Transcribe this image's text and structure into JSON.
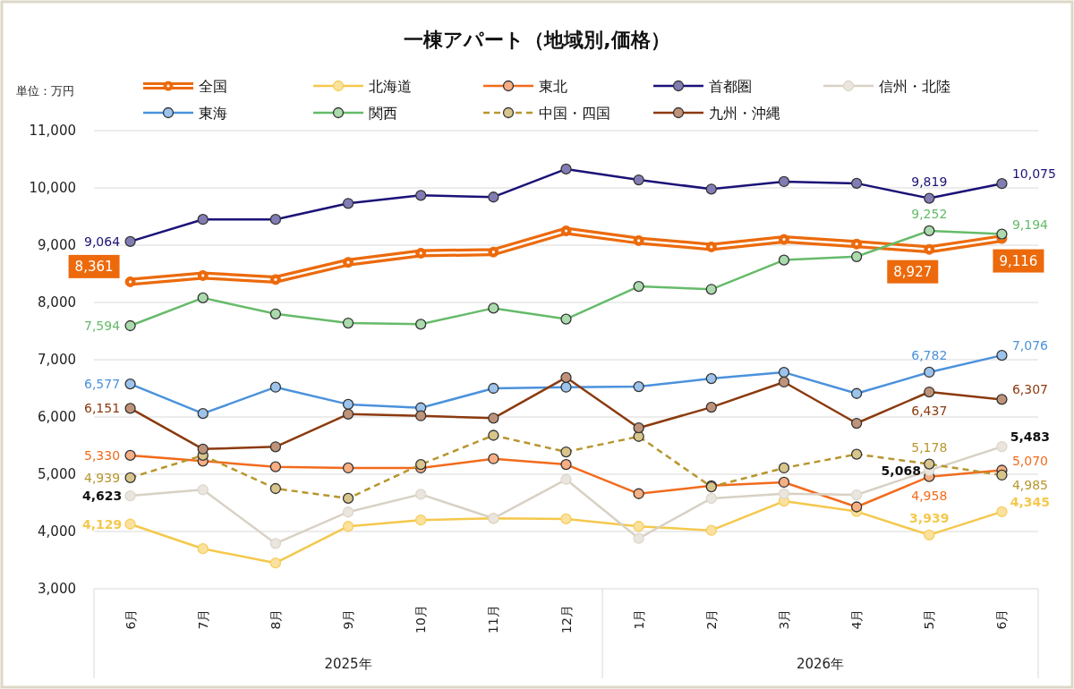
{
  "chart_data": {
    "type": "line",
    "title": "一棟アパート（地域別,価格）",
    "categories": [
      "6月",
      "7月",
      "8月",
      "9月",
      "10月",
      "11月",
      "12月",
      "1月",
      "2月",
      "3月",
      "4月",
      "5月",
      "6月"
    ],
    "annotations": [
      "単位：万円",
      "2025年",
      "2026年"
    ],
    "ylim": [
      3000,
      11000
    ],
    "yticks": [
      {
        "value": 3000,
        "label": "3,000"
      },
      {
        "value": 4000,
        "label": "4,000"
      },
      {
        "value": 5000,
        "label": "5,000"
      },
      {
        "value": 6000,
        "label": "6,000"
      },
      {
        "value": 7000,
        "label": "7,000"
      },
      {
        "value": 8000,
        "label": "8,000"
      },
      {
        "value": 9000,
        "label": "9,000"
      },
      {
        "value": 10000,
        "label": "10,000"
      },
      {
        "value": 11000,
        "label": "11,000"
      }
    ],
    "grid": "y",
    "legend": "top",
    "marker": "circle",
    "line_style": "solid",
    "series": [
      {
        "name": "全国",
        "color": "#ec6a0c",
        "values": [
          8361,
          8470,
          8400,
          8700,
          8860,
          8880,
          9250,
          9080,
          8970,
          9100,
          9020,
          8927,
          9116
        ],
        "value_labels": [
          "8,361",
          null,
          null,
          null,
          null,
          null,
          null,
          null,
          null,
          null,
          null,
          "8,927",
          "9,116"
        ]
      },
      {
        "name": "北海道",
        "color": "#f5c84c",
        "values": [
          4129,
          3700,
          3450,
          4090,
          4200,
          4230,
          4220,
          4090,
          4020,
          4530,
          4350,
          3939,
          4345
        ],
        "value_labels": [
          "4,129",
          null,
          null,
          null,
          null,
          null,
          null,
          null,
          null,
          null,
          null,
          "3,939",
          "4,345"
        ]
      },
      {
        "name": "東北",
        "color": "#f26b1d",
        "values": [
          5330,
          5230,
          5130,
          5110,
          5110,
          5270,
          5170,
          4660,
          4800,
          4860,
          4430,
          4958,
          5070
        ],
        "value_labels": [
          "5,330",
          null,
          null,
          null,
          null,
          null,
          null,
          null,
          null,
          null,
          null,
          "4,958",
          "5,070"
        ]
      },
      {
        "name": "首都圏",
        "color": "#1a1277",
        "values": [
          9064,
          9450,
          9450,
          9730,
          9870,
          9840,
          10330,
          10140,
          9980,
          10110,
          10080,
          9819,
          10075
        ],
        "value_labels": [
          "9,064",
          null,
          null,
          null,
          null,
          null,
          null,
          null,
          null,
          null,
          null,
          "9,819",
          "10,075"
        ]
      },
      {
        "name": "信州・北陸",
        "color": "#d8d1c4",
        "values": [
          4623,
          4730,
          3790,
          4340,
          4650,
          4230,
          4910,
          3880,
          4580,
          4660,
          4640,
          5068,
          5483
        ],
        "value_labels": [
          "4,623",
          null,
          null,
          null,
          null,
          null,
          null,
          null,
          null,
          null,
          null,
          "5,068",
          "5,483"
        ]
      },
      {
        "name": "東海",
        "color": "#4b92dc",
        "values": [
          6577,
          6060,
          6520,
          6220,
          6160,
          6500,
          6520,
          6530,
          6670,
          6780,
          6410,
          6782,
          7076
        ],
        "value_labels": [
          "6,577",
          null,
          null,
          null,
          null,
          null,
          null,
          null,
          null,
          null,
          null,
          "6,782",
          "7,076"
        ]
      },
      {
        "name": "関西",
        "color": "#66bb6a",
        "values": [
          7594,
          8080,
          7800,
          7640,
          7620,
          7900,
          7710,
          8280,
          8230,
          8740,
          8800,
          9252,
          9194
        ],
        "value_labels": [
          "7,594",
          null,
          null,
          null,
          null,
          null,
          null,
          null,
          null,
          null,
          null,
          "9,252",
          "9,194"
        ]
      },
      {
        "name": "中国・四国",
        "color": "#b8962e",
        "line_style": "dashed",
        "values": [
          4939,
          5330,
          4750,
          4580,
          5170,
          5680,
          5390,
          5660,
          4780,
          5110,
          5350,
          5178,
          4985
        ],
        "value_labels": [
          "4,939",
          null,
          null,
          null,
          null,
          null,
          null,
          null,
          null,
          null,
          null,
          "5,178",
          "4,985"
        ]
      },
      {
        "name": "九州・沖縄",
        "color": "#8b3a0e",
        "values": [
          6151,
          5440,
          5480,
          6050,
          6020,
          5980,
          6690,
          5810,
          6170,
          6610,
          5890,
          6437,
          6307
        ],
        "value_labels": [
          "6,151",
          null,
          null,
          null,
          null,
          null,
          null,
          null,
          null,
          null,
          null,
          "6,437",
          "6,307"
        ]
      }
    ]
  }
}
